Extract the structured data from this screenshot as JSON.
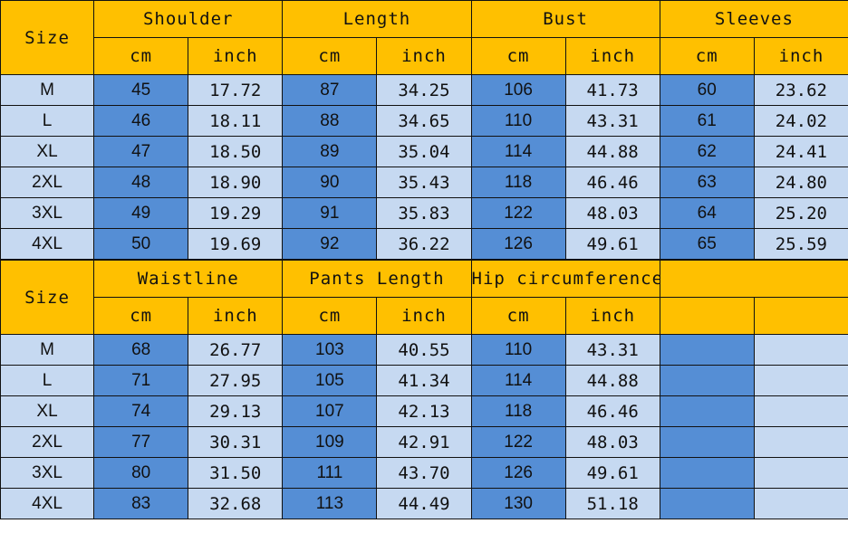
{
  "colors": {
    "header": "#FFC000",
    "light": "#C6D9F1",
    "dark": "#558ED5"
  },
  "tables": [
    {
      "size_label": "Size",
      "groups": [
        "Shoulder",
        "Length",
        "Bust",
        "Sleeves"
      ],
      "units": [
        "cm",
        "inch",
        "cm",
        "inch",
        "cm",
        "inch",
        "cm",
        "inch"
      ],
      "rows": [
        {
          "size": "M",
          "values": [
            "45",
            "17.72",
            "87",
            "34.25",
            "106",
            "41.73",
            "60",
            "23.62"
          ]
        },
        {
          "size": "L",
          "values": [
            "46",
            "18.11",
            "88",
            "34.65",
            "110",
            "43.31",
            "61",
            "24.02"
          ]
        },
        {
          "size": "XL",
          "values": [
            "47",
            "18.50",
            "89",
            "35.04",
            "114",
            "44.88",
            "62",
            "24.41"
          ]
        },
        {
          "size": "2XL",
          "values": [
            "48",
            "18.90",
            "90",
            "35.43",
            "118",
            "46.46",
            "63",
            "24.80"
          ]
        },
        {
          "size": "3XL",
          "values": [
            "49",
            "19.29",
            "91",
            "35.83",
            "122",
            "48.03",
            "64",
            "25.20"
          ]
        },
        {
          "size": "4XL",
          "values": [
            "50",
            "19.69",
            "92",
            "36.22",
            "126",
            "49.61",
            "65",
            "25.59"
          ]
        }
      ]
    },
    {
      "size_label": "Size",
      "groups": [
        "Waistline",
        "Pants Length",
        "Hip circumference",
        ""
      ],
      "units": [
        "cm",
        "inch",
        "cm",
        "inch",
        "cm",
        "inch",
        "",
        ""
      ],
      "rows": [
        {
          "size": "M",
          "values": [
            "68",
            "26.77",
            "103",
            "40.55",
            "110",
            "43.31",
            "",
            ""
          ]
        },
        {
          "size": "L",
          "values": [
            "71",
            "27.95",
            "105",
            "41.34",
            "114",
            "44.88",
            "",
            ""
          ]
        },
        {
          "size": "XL",
          "values": [
            "74",
            "29.13",
            "107",
            "42.13",
            "118",
            "46.46",
            "",
            ""
          ]
        },
        {
          "size": "2XL",
          "values": [
            "77",
            "30.31",
            "109",
            "42.91",
            "122",
            "48.03",
            "",
            ""
          ]
        },
        {
          "size": "3XL",
          "values": [
            "80",
            "31.50",
            "111",
            "43.70",
            "126",
            "49.61",
            "",
            ""
          ]
        },
        {
          "size": "4XL",
          "values": [
            "83",
            "32.68",
            "113",
            "44.49",
            "130",
            "51.18",
            "",
            ""
          ]
        }
      ]
    }
  ]
}
